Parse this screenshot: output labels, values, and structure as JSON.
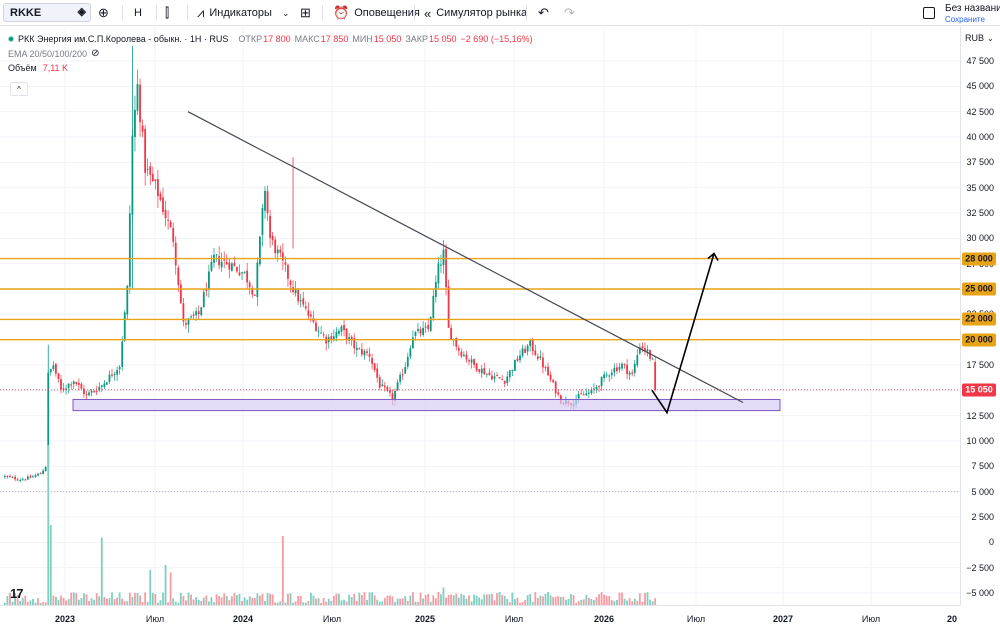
{
  "toolbar": {
    "symbol": "RKKE",
    "interval": "Н",
    "indicators_label": "Индикаторы",
    "alerts_label": "Оповещения",
    "replay_label": "Симулятор рынка",
    "layout_name": "Без названи",
    "layout_save": "Сохраните"
  },
  "legend": {
    "title": "РКК Энергия им.С.П.Королева - обыкн. · 1Н · RUS",
    "open_label": "ОТКР",
    "open": "17 800",
    "high_label": "МАКС",
    "high": "17 850",
    "low_label": "МИН",
    "low": "15 050",
    "close_label": "ЗАКР",
    "close": "15 050",
    "change": "−2 690 (−15,16%)",
    "ema": "EMA 20/50/100/200",
    "volume_label": "Объём",
    "volume": "7,11 K"
  },
  "colors": {
    "up": "#089981",
    "down": "#f23645",
    "level": "#e8a317",
    "zone_fill": "#d9ccf5",
    "zone_stroke": "#7e57c2",
    "trendline": "#434651",
    "arrow": "#000000"
  },
  "price_scale": {
    "currency": "RUB",
    "ticks": [
      "47 500",
      "45 000",
      "42 500",
      "40 000",
      "37 500",
      "35 000",
      "32 500",
      "30 000",
      "27 500",
      "25 000",
      "22 500",
      "20 000",
      "17 500",
      "15 000",
      "12 500",
      "10 000",
      "7 500",
      "5 000",
      "2 500",
      "0",
      "−2 500",
      "−5 000"
    ],
    "labels": [
      {
        "text": "28 000",
        "price": 28000,
        "kind": "level"
      },
      {
        "text": "25 000",
        "price": 25000,
        "kind": "level"
      },
      {
        "text": "22 000",
        "price": 22000,
        "kind": "level"
      },
      {
        "text": "20 000",
        "price": 20000,
        "kind": "level"
      },
      {
        "text": "15 050",
        "price": 15050,
        "kind": "last"
      }
    ]
  },
  "time_scale": {
    "ticks": [
      {
        "text": "2023",
        "year": true
      },
      {
        "text": "Июл",
        "year": false
      },
      {
        "text": "2024",
        "year": true
      },
      {
        "text": "Июл",
        "year": false
      },
      {
        "text": "2025",
        "year": true
      },
      {
        "text": "Июл",
        "year": false
      },
      {
        "text": "2026",
        "year": true
      },
      {
        "text": "Июл",
        "year": false
      },
      {
        "text": "2027",
        "year": true
      },
      {
        "text": "Июл",
        "year": false
      },
      {
        "text": "20",
        "year": true
      }
    ]
  },
  "chart_data": {
    "type": "candlestick",
    "interval": "week",
    "x_unit": "week index starting at 2022-10",
    "price_range": [
      -6000,
      49000
    ],
    "horizontal_levels": [
      28000,
      25000,
      22000,
      20000
    ],
    "support_zone": [
      13000,
      14100
    ],
    "last_price": 15050,
    "reference_level": 5000,
    "trendline": [
      {
        "date": "2023-10",
        "price": 42500
      },
      {
        "date": "2026-08",
        "price": 13800
      }
    ],
    "projection": [
      {
        "date": "2026-03",
        "price": 15000
      },
      {
        "date": "2026-05",
        "price": 12800
      },
      {
        "date": "2026-08",
        "price": 28500
      }
    ],
    "close_path": [
      [
        0,
        6500
      ],
      [
        6,
        6200
      ],
      [
        10,
        6400
      ],
      [
        14,
        6800
      ],
      [
        16,
        7500
      ],
      [
        17,
        16500
      ],
      [
        19,
        17500
      ],
      [
        22,
        15000
      ],
      [
        27,
        16000
      ],
      [
        32,
        14500
      ],
      [
        38,
        15500
      ],
      [
        45,
        17500
      ],
      [
        48,
        25000
      ],
      [
        50,
        40000
      ],
      [
        52,
        45000
      ],
      [
        55,
        37000
      ],
      [
        60,
        34500
      ],
      [
        66,
        30000
      ],
      [
        70,
        21500
      ],
      [
        76,
        22500
      ],
      [
        82,
        28000
      ],
      [
        88,
        27500
      ],
      [
        94,
        26500
      ],
      [
        98,
        24500
      ],
      [
        102,
        35000
      ],
      [
        104,
        30000
      ],
      [
        108,
        28000
      ],
      [
        114,
        24500
      ],
      [
        120,
        22000
      ],
      [
        126,
        20000
      ],
      [
        132,
        21000
      ],
      [
        138,
        19000
      ],
      [
        143,
        18500
      ],
      [
        147,
        15500
      ],
      [
        152,
        14200
      ],
      [
        157,
        17500
      ],
      [
        160,
        20500
      ],
      [
        166,
        21000
      ],
      [
        170,
        27000
      ],
      [
        172,
        28500
      ],
      [
        174,
        21000
      ],
      [
        178,
        19000
      ],
      [
        184,
        17500
      ],
      [
        190,
        16500
      ],
      [
        196,
        16000
      ],
      [
        202,
        18500
      ],
      [
        206,
        19500
      ],
      [
        210,
        18000
      ],
      [
        214,
        16000
      ],
      [
        218,
        14000
      ],
      [
        222,
        13800
      ],
      [
        226,
        14500
      ],
      [
        230,
        14800
      ],
      [
        234,
        16000
      ],
      [
        238,
        17000
      ],
      [
        242,
        17500
      ],
      [
        246,
        16500
      ],
      [
        249,
        19500
      ],
      [
        252,
        18800
      ],
      [
        254,
        17800
      ],
      [
        255,
        15050
      ]
    ],
    "volume_spikes": [
      {
        "week": 17,
        "value": 32000,
        "up": true
      },
      {
        "week": 18,
        "value": 16000,
        "up": true
      },
      {
        "week": 38,
        "value": 13500,
        "up": true
      },
      {
        "week": 57,
        "value": 7000,
        "up": true
      },
      {
        "week": 63,
        "value": 8000,
        "up": true
      },
      {
        "week": 65,
        "value": 6500,
        "up": false
      },
      {
        "week": 109,
        "value": 13800,
        "up": false
      },
      {
        "week": 172,
        "value": 3500,
        "up": true
      }
    ]
  }
}
